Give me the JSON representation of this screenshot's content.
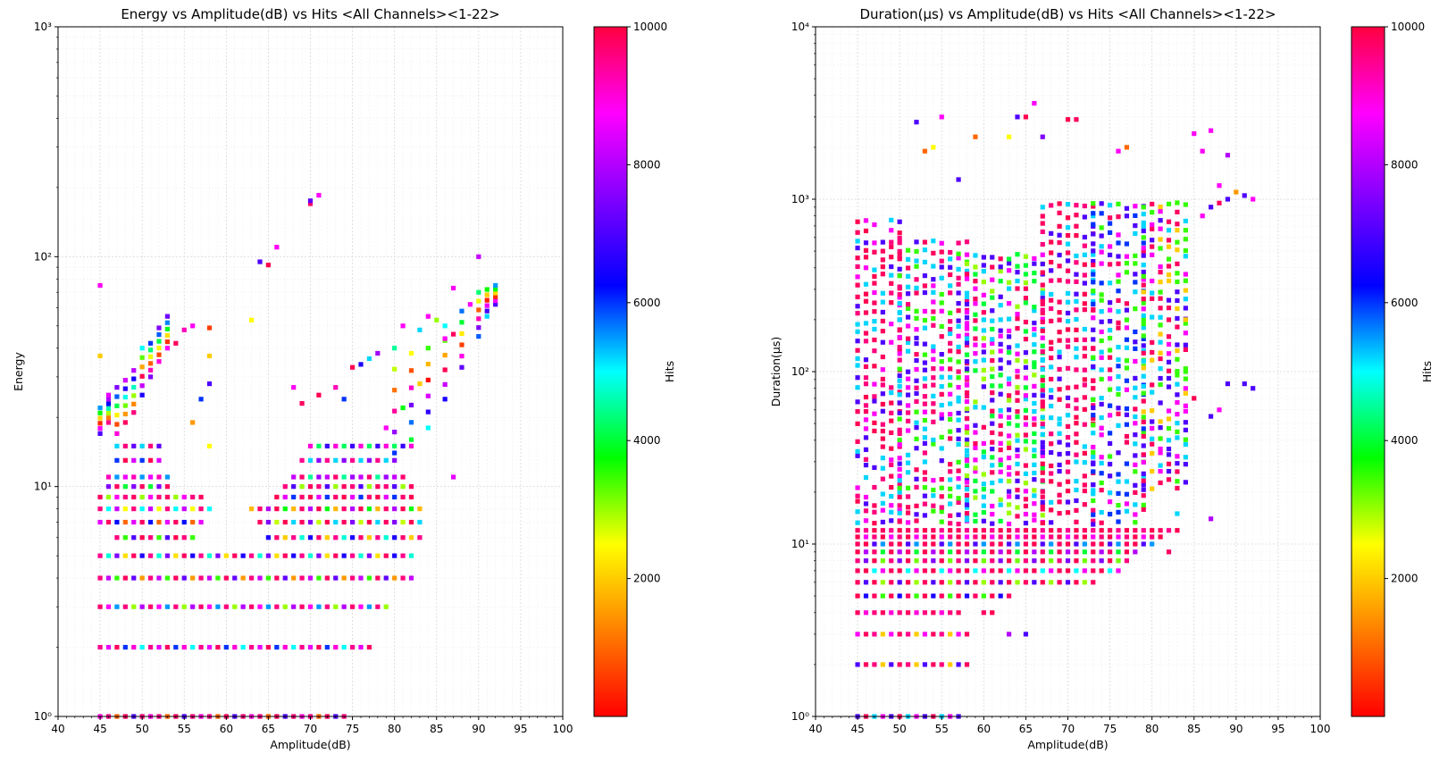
{
  "figure": {
    "colorbar_ticks": [
      2000,
      4000,
      6000,
      8000,
      10000
    ],
    "colormap_stops": [
      "#ff0000",
      "#ff8000",
      "#ffff00",
      "#00ff00",
      "#00ffff",
      "#0000ff",
      "#8000ff",
      "#ff00ff",
      "#ff0040"
    ]
  },
  "chart_data": [
    {
      "type": "heatmap",
      "title": "Energy vs Amplitude(dB) vs Hits <All Channels><1-22>",
      "xlabel": "Amplitude(dB)",
      "ylabel": "Energy",
      "colorbar_label": "Hits",
      "xlim": [
        40,
        100
      ],
      "ylim": [
        1,
        1000
      ],
      "yscale": "log",
      "grid": true,
      "x_ticks": [
        40,
        45,
        50,
        55,
        60,
        65,
        70,
        75,
        80,
        85,
        90,
        95,
        100
      ],
      "y_ticks": [
        {
          "value": 1,
          "label": "10⁰"
        },
        {
          "value": 10,
          "label": "10¹"
        },
        {
          "value": 100,
          "label": "10²"
        },
        {
          "value": 1000,
          "label": "10³"
        }
      ],
      "colorbar_range": [
        0,
        10000
      ],
      "bands": [
        {
          "y": 1,
          "x": [
            45,
            74
          ],
          "hits": [
            9000,
            9500,
            1000,
            9800,
            7000,
            9600
          ]
        },
        {
          "y": 2,
          "x": [
            45,
            77
          ],
          "hits": [
            9500,
            8500,
            9800,
            6000,
            9000,
            5000
          ]
        },
        {
          "y": 3,
          "x": [
            45,
            79
          ],
          "hits": [
            9700,
            8800,
            5500,
            9600,
            3000,
            8000
          ]
        },
        {
          "y": 4,
          "x": [
            45,
            82
          ],
          "hits": [
            9600,
            8200,
            3500,
            9800,
            7200,
            1500
          ]
        },
        {
          "y": 5,
          "x": [
            45,
            82
          ],
          "hits": [
            9500,
            4800,
            7500,
            2200,
            9800,
            6500
          ]
        },
        {
          "y": 6,
          "x": [
            47,
            56
          ],
          "hits": [
            9600,
            3500,
            7000,
            9900
          ]
        },
        {
          "y": 6,
          "x": [
            65,
            83
          ],
          "hits": [
            6500,
            9700,
            2000,
            9500,
            4800
          ]
        },
        {
          "y": 7,
          "x": [
            45,
            57
          ],
          "hits": [
            8500,
            9800,
            6200,
            1000
          ]
        },
        {
          "y": 7,
          "x": [
            64,
            83
          ],
          "hits": [
            9800,
            7500,
            2800,
            9900,
            5200
          ]
        },
        {
          "y": 8,
          "x": [
            45,
            58
          ],
          "hits": [
            9600,
            5000,
            8200,
            2500
          ]
        },
        {
          "y": 8,
          "x": [
            63,
            83
          ],
          "hits": [
            1800,
            9700,
            8000,
            9900,
            3800
          ]
        },
        {
          "y": 9,
          "x": [
            45,
            57
          ],
          "hits": [
            9800,
            3000,
            8800,
            9600
          ]
        },
        {
          "y": 9,
          "x": [
            66,
            82
          ],
          "hits": [
            9900,
            8500,
            6000,
            9700
          ]
        },
        {
          "y": 10,
          "x": [
            46,
            53
          ],
          "hits": [
            7500,
            9800,
            4000
          ]
        },
        {
          "y": 10,
          "x": [
            67,
            82
          ],
          "hits": [
            9600,
            7000,
            3000,
            9800
          ]
        },
        {
          "y": 11,
          "x": [
            46,
            53
          ],
          "hits": [
            9200,
            5500,
            8600
          ]
        },
        {
          "y": 11,
          "x": [
            68,
            81
          ],
          "hits": [
            8200,
            9700,
            4500,
            7800
          ]
        },
        {
          "y": 13,
          "x": [
            47,
            52
          ],
          "hits": [
            6000,
            9900,
            8400
          ]
        },
        {
          "y": 13,
          "x": [
            69,
            80
          ],
          "hits": [
            9500,
            5200,
            7600
          ]
        },
        {
          "y": 15,
          "x": [
            47,
            52
          ],
          "hits": [
            5200,
            9600,
            7200
          ]
        },
        {
          "y": 15,
          "x": [
            70,
            82
          ],
          "hits": [
            9000,
            4200,
            6800
          ]
        }
      ],
      "ridge": [
        {
          "x": 45,
          "y": [
            17,
            22
          ],
          "hits": 7000
        },
        {
          "x": 46,
          "y": [
            19,
            24
          ],
          "hits": 9500
        },
        {
          "x": 47,
          "y": [
            17,
            27
          ],
          "hits": 9000
        },
        {
          "x": 48,
          "y": [
            19,
            29
          ],
          "hits": 9800
        },
        {
          "x": 49,
          "y": [
            21,
            32
          ],
          "hits": 9600
        },
        {
          "x": 50,
          "y": [
            25,
            40
          ],
          "hits": 6500
        },
        {
          "x": 51,
          "y": [
            30,
            42
          ],
          "hits": 7500
        },
        {
          "x": 52,
          "y": [
            35,
            49
          ],
          "hits": 9000
        },
        {
          "x": 53,
          "y": [
            40,
            55
          ],
          "hits": 8800
        },
        {
          "x": 80,
          "y": [
            14,
            40
          ],
          "hits": 6000
        },
        {
          "x": 82,
          "y": [
            16,
            38
          ],
          "hits": 4000
        },
        {
          "x": 84,
          "y": [
            18,
            40
          ],
          "hits": 5000
        },
        {
          "x": 86,
          "y": [
            24,
            50
          ],
          "hits": 6500
        },
        {
          "x": 88,
          "y": [
            33,
            58
          ],
          "hits": 7200
        },
        {
          "x": 90,
          "y": [
            45,
            70
          ],
          "hits": 5800
        },
        {
          "x": 91,
          "y": [
            55,
            72
          ],
          "hits": 5200
        },
        {
          "x": 92,
          "y": [
            62,
            75
          ],
          "hits": 7000
        }
      ],
      "points": [
        {
          "x": 45,
          "y": 75,
          "hits": 8800
        },
        {
          "x": 45,
          "y": 37,
          "hits": 2000
        },
        {
          "x": 46,
          "y": 25,
          "hits": 8500
        },
        {
          "x": 54,
          "y": 42,
          "hits": 9800
        },
        {
          "x": 55,
          "y": 48,
          "hits": 9200
        },
        {
          "x": 56,
          "y": 50,
          "hits": 8800
        },
        {
          "x": 58,
          "y": 49,
          "hits": 600
        },
        {
          "x": 58,
          "y": 37,
          "hits": 2000
        },
        {
          "x": 57,
          "y": 24,
          "hits": 6000
        },
        {
          "x": 58,
          "y": 28,
          "hits": 7000
        },
        {
          "x": 56,
          "y": 19,
          "hits": 1500
        },
        {
          "x": 58,
          "y": 15,
          "hits": 2500
        },
        {
          "x": 63,
          "y": 53,
          "hits": 2500
        },
        {
          "x": 64,
          "y": 95,
          "hits": 7000
        },
        {
          "x": 65,
          "y": 92,
          "hits": 9900
        },
        {
          "x": 66,
          "y": 110,
          "hits": 8800
        },
        {
          "x": 70,
          "y": 170,
          "hits": 9800
        },
        {
          "x": 70,
          "y": 175,
          "hits": 7200
        },
        {
          "x": 71,
          "y": 185,
          "hits": 8800
        },
        {
          "x": 68,
          "y": 27,
          "hits": 8800
        },
        {
          "x": 69,
          "y": 23,
          "hits": 9800
        },
        {
          "x": 71,
          "y": 25,
          "hits": 9900
        },
        {
          "x": 73,
          "y": 27,
          "hits": 9200
        },
        {
          "x": 74,
          "y": 24,
          "hits": 6000
        },
        {
          "x": 75,
          "y": 33,
          "hits": 9900
        },
        {
          "x": 76,
          "y": 34,
          "hits": 6500
        },
        {
          "x": 77,
          "y": 36,
          "hits": 5200
        },
        {
          "x": 78,
          "y": 38,
          "hits": 7800
        },
        {
          "x": 81,
          "y": 50,
          "hits": 8800
        },
        {
          "x": 83,
          "y": 48,
          "hits": 5200
        },
        {
          "x": 84,
          "y": 55,
          "hits": 8800
        },
        {
          "x": 85,
          "y": 53,
          "hits": 3000
        },
        {
          "x": 87,
          "y": 73,
          "hits": 8800
        },
        {
          "x": 89,
          "y": 62,
          "hits": 8800
        },
        {
          "x": 90,
          "y": 100,
          "hits": 8200
        },
        {
          "x": 87,
          "y": 11,
          "hits": 8500
        },
        {
          "x": 87,
          "y": 46,
          "hits": 9800
        },
        {
          "x": 86,
          "y": 44,
          "hits": 8800
        },
        {
          "x": 83,
          "y": 28,
          "hits": 2000
        },
        {
          "x": 81,
          "y": 22,
          "hits": 3800
        },
        {
          "x": 79,
          "y": 18,
          "hits": 8800
        }
      ]
    },
    {
      "type": "heatmap",
      "title": "Duration(μs) vs Amplitude(dB) vs Hits <All Channels><1-22>",
      "xlabel": "Amplitude(dB)",
      "ylabel": "Duration(μs)",
      "colorbar_label": "Hits",
      "xlim": [
        40,
        100
      ],
      "ylim": [
        1,
        10000
      ],
      "yscale": "log",
      "grid": true,
      "x_ticks": [
        40,
        45,
        50,
        55,
        60,
        65,
        70,
        75,
        80,
        85,
        90,
        95,
        100
      ],
      "y_ticks": [
        {
          "value": 1,
          "label": "10⁰"
        },
        {
          "value": 10,
          "label": "10¹"
        },
        {
          "value": 100,
          "label": "10²"
        },
        {
          "value": 1000,
          "label": "10³"
        },
        {
          "value": 10000,
          "label": "10⁴"
        }
      ],
      "colorbar_range": [
        0,
        10000
      ],
      "bands": [
        {
          "y": 1,
          "x": [
            45,
            57
          ],
          "hits": [
            7000,
            9800,
            5200,
            8800
          ]
        },
        {
          "y": 2,
          "x": [
            45,
            58
          ],
          "hits": [
            7000,
            9800,
            9600,
            2000
          ]
        },
        {
          "y": 3,
          "x": [
            45,
            58
          ],
          "hits": [
            8800,
            9800,
            9500,
            2000
          ]
        },
        {
          "y": 4,
          "x": [
            45,
            57
          ],
          "hits": [
            9800,
            9000,
            9600
          ]
        },
        {
          "y": 5,
          "x": [
            45,
            63
          ],
          "hits": [
            9900,
            6500,
            9800,
            3500
          ]
        },
        {
          "y": 6,
          "x": [
            45,
            73
          ],
          "hits": [
            9800,
            7000,
            9900,
            3000
          ]
        },
        {
          "y": 7,
          "x": [
            45,
            76
          ],
          "hits": [
            9800,
            9900,
            5000,
            8800
          ]
        },
        {
          "y": 8,
          "x": [
            45,
            77
          ],
          "hits": [
            9600,
            7500,
            9900,
            3200
          ]
        },
        {
          "y": 9,
          "x": [
            45,
            78
          ],
          "hits": [
            9900,
            8000,
            9700,
            4000
          ]
        },
        {
          "y": 10,
          "x": [
            45,
            80
          ],
          "hits": [
            9800,
            9900,
            7000,
            5500
          ]
        },
        {
          "y": 11,
          "x": [
            45,
            81
          ],
          "hits": [
            9900,
            8800,
            9600
          ]
        },
        {
          "y": 12,
          "x": [
            45,
            83
          ],
          "hits": [
            9800,
            9500,
            9900
          ]
        }
      ],
      "cloud": [
        {
          "x_range": [
            45,
            50
          ],
          "y_range": [
            13,
            800
          ],
          "hits": [
            9900,
            9600,
            8800,
            5200,
            7000,
            9800
          ]
        },
        {
          "x_range": [
            50,
            58
          ],
          "y_range": [
            13,
            600
          ],
          "hits": [
            9800,
            3500,
            5200,
            8800,
            9600,
            7000
          ]
        },
        {
          "x_range": [
            58,
            67
          ],
          "y_range": [
            13,
            500
          ],
          "hits": [
            3000,
            9800,
            5200,
            7000,
            8800,
            4000
          ]
        },
        {
          "x_range": [
            67,
            73
          ],
          "y_range": [
            13,
            1000
          ],
          "hits": [
            9900,
            9800,
            9600,
            7000,
            5200
          ]
        },
        {
          "x_range": [
            73,
            79
          ],
          "y_range": [
            13,
            1000
          ],
          "hits": [
            6000,
            7000,
            3500,
            9800,
            8800,
            5200
          ]
        },
        {
          "x_range": [
            79,
            84
          ],
          "y_range": [
            20,
            1000
          ],
          "hits": [
            3500,
            2000,
            9800,
            5200,
            7000,
            8800
          ]
        }
      ],
      "points": [
        {
          "x": 52,
          "y": 2800,
          "hits": 7000
        },
        {
          "x": 53,
          "y": 1900,
          "hits": 1000
        },
        {
          "x": 54,
          "y": 2000,
          "hits": 2500
        },
        {
          "x": 55,
          "y": 3000,
          "hits": 8800
        },
        {
          "x": 57,
          "y": 1300,
          "hits": 7000
        },
        {
          "x": 59,
          "y": 2300,
          "hits": 1000
        },
        {
          "x": 63,
          "y": 2300,
          "hits": 2500
        },
        {
          "x": 64,
          "y": 3000,
          "hits": 7000
        },
        {
          "x": 65,
          "y": 3000,
          "hits": 9900
        },
        {
          "x": 66,
          "y": 3600,
          "hits": 8800
        },
        {
          "x": 67,
          "y": 2300,
          "hits": 7500
        },
        {
          "x": 70,
          "y": 2900,
          "hits": 9900
        },
        {
          "x": 71,
          "y": 2900,
          "hits": 9800
        },
        {
          "x": 76,
          "y": 1900,
          "hits": 8800
        },
        {
          "x": 77,
          "y": 2000,
          "hits": 1000
        },
        {
          "x": 85,
          "y": 2400,
          "hits": 8800
        },
        {
          "x": 86,
          "y": 1900,
          "hits": 8800
        },
        {
          "x": 87,
          "y": 2500,
          "hits": 8800
        },
        {
          "x": 89,
          "y": 1800,
          "hits": 8000
        },
        {
          "x": 86,
          "y": 800,
          "hits": 8800
        },
        {
          "x": 87,
          "y": 900,
          "hits": 7000
        },
        {
          "x": 88,
          "y": 950,
          "hits": 9800
        },
        {
          "x": 89,
          "y": 1000,
          "hits": 7000
        },
        {
          "x": 90,
          "y": 1100,
          "hits": 1500
        },
        {
          "x": 91,
          "y": 1050,
          "hits": 7000
        },
        {
          "x": 92,
          "y": 1000,
          "hits": 8800
        },
        {
          "x": 88,
          "y": 1200,
          "hits": 8800
        },
        {
          "x": 85,
          "y": 70,
          "hits": 9900
        },
        {
          "x": 87,
          "y": 55,
          "hits": 7000
        },
        {
          "x": 88,
          "y": 60,
          "hits": 8800
        },
        {
          "x": 89,
          "y": 85,
          "hits": 7000
        },
        {
          "x": 91,
          "y": 85,
          "hits": 7000
        },
        {
          "x": 92,
          "y": 80,
          "hits": 7000
        },
        {
          "x": 87,
          "y": 14,
          "hits": 8000
        },
        {
          "x": 82,
          "y": 9,
          "hits": 9800
        },
        {
          "x": 83,
          "y": 15,
          "hits": 5200
        },
        {
          "x": 84,
          "y": 200,
          "hits": 2000
        },
        {
          "x": 84,
          "y": 100,
          "hits": 3500
        },
        {
          "x": 63,
          "y": 3,
          "hits": 8000
        },
        {
          "x": 65,
          "y": 3,
          "hits": 7000
        },
        {
          "x": 60,
          "y": 4,
          "hits": 9800
        },
        {
          "x": 61,
          "y": 4,
          "hits": 9900
        }
      ]
    }
  ]
}
